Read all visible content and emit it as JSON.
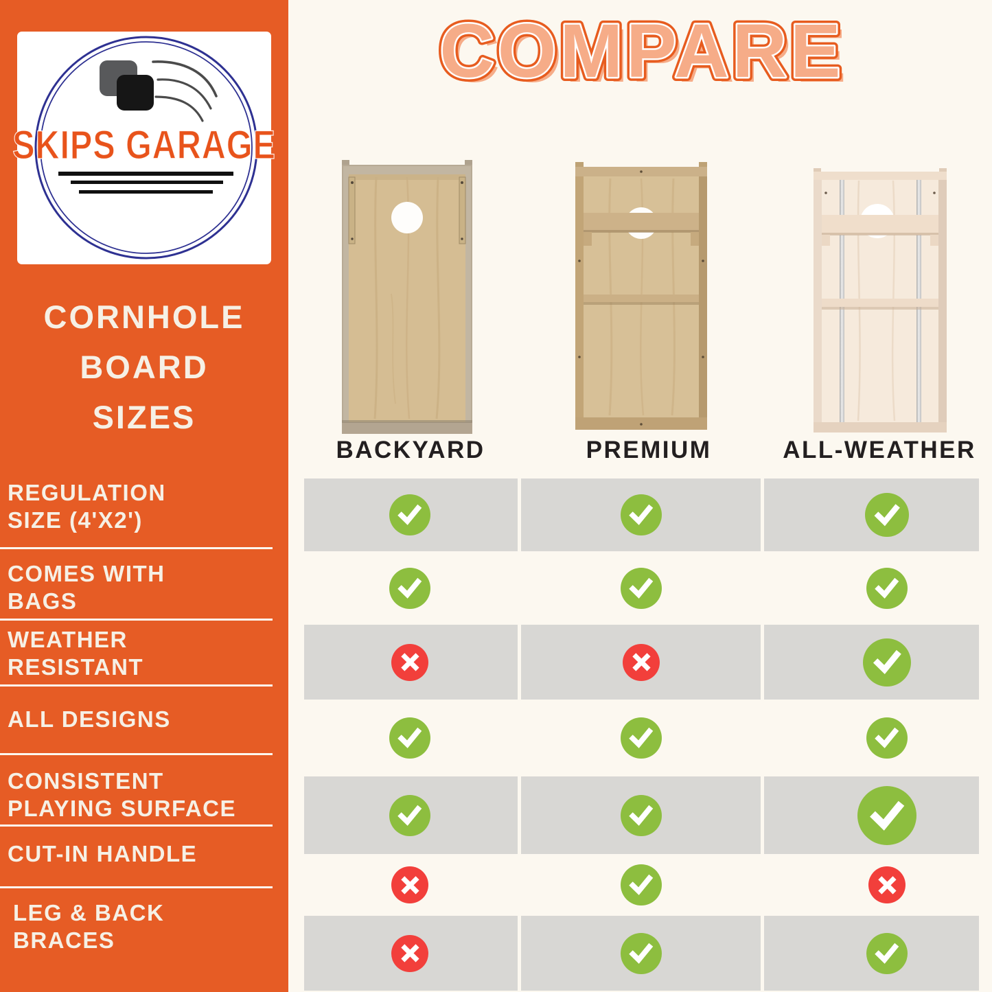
{
  "brand": {
    "name": "SKIPS GARAGE"
  },
  "sidebar": {
    "title_lines": [
      "CORNHOLE",
      "BOARD",
      "SIZES"
    ],
    "features": [
      {
        "label": "REGULATION SIZE (4'X2')",
        "lines": [
          "REGULATION",
          "SIZE (4'X2')"
        ]
      },
      {
        "label": "COMES WITH BAGS",
        "lines": [
          "COMES WITH",
          "BAGS"
        ]
      },
      {
        "label": "WEATHER RESISTANT",
        "lines": [
          "WEATHER",
          "RESISTANT"
        ]
      },
      {
        "label": "ALL DESIGNS",
        "lines": [
          "ALL DESIGNS"
        ]
      },
      {
        "label": "CONSISTENT PLAYING SURFACE",
        "lines": [
          "CONSISTENT",
          "PLAYING SURFACE"
        ]
      },
      {
        "label": "CUT-IN HANDLE",
        "lines": [
          "CUT-IN HANDLE"
        ]
      },
      {
        "label": "LEG & BACK BRACES",
        "lines": [
          "LEG & BACK",
          "BRACES"
        ]
      }
    ]
  },
  "header": {
    "title": "COMPARE"
  },
  "columns": [
    {
      "name": "BACKYARD"
    },
    {
      "name": "PREMIUM"
    },
    {
      "name": "ALL-WEATHER"
    }
  ],
  "chart_data": {
    "type": "table",
    "title": "COMPARE",
    "columns": [
      "BACKYARD",
      "PREMIUM",
      "ALL-WEATHER"
    ],
    "rows": [
      {
        "feature": "REGULATION SIZE (4'X2')",
        "values": [
          true,
          true,
          true
        ]
      },
      {
        "feature": "COMES WITH BAGS",
        "values": [
          true,
          true,
          true
        ]
      },
      {
        "feature": "WEATHER RESISTANT",
        "values": [
          false,
          false,
          true
        ]
      },
      {
        "feature": "ALL DESIGNS",
        "values": [
          true,
          true,
          true
        ]
      },
      {
        "feature": "CONSISTENT PLAYING SURFACE",
        "values": [
          true,
          true,
          true
        ]
      },
      {
        "feature": "CUT-IN HANDLE",
        "values": [
          false,
          true,
          false
        ]
      },
      {
        "feature": "LEG & BACK BRACES",
        "values": [
          false,
          true,
          true
        ]
      }
    ],
    "yes_icon": "check-icon",
    "no_icon": "x-icon"
  },
  "colors": {
    "orange": "#E65C25",
    "cream": "#FCF8F0",
    "sidebar-text": "#F6F0E5",
    "gray": "#D8D7D4",
    "green": "#8DBE3F",
    "red": "#F23F3B",
    "dark": "#231F20",
    "logo-orange": "#E8531B",
    "logo-blue": "#2E3192",
    "title-fill": "#F6AC88",
    "title-stroke": "#E75C1F"
  }
}
